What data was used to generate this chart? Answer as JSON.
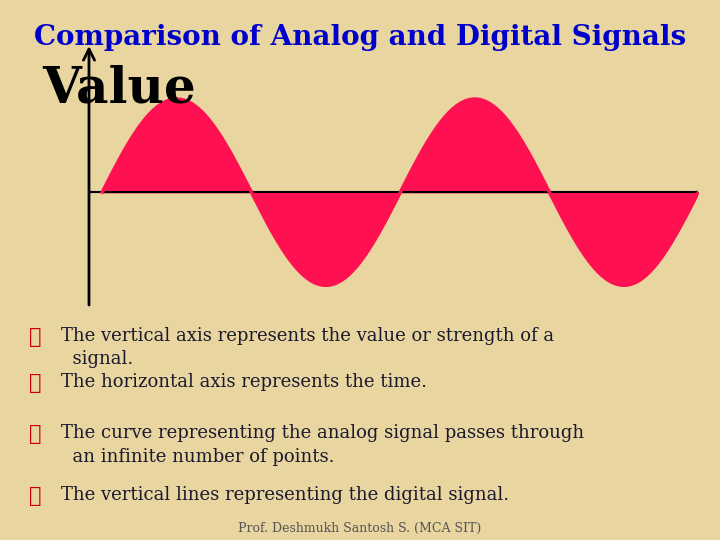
{
  "title": "Comparison of Analog and Digital Signals",
  "title_color": "#0000CC",
  "title_fontsize": 20,
  "bg_color": "#E8D5A0",
  "ylabel_text": "Value",
  "ylabel_fontsize": 36,
  "ylabel_color": "#000000",
  "sine_color": "#FF1050",
  "axis_color": "#000000",
  "bullet_color": "#CC0000",
  "text_color": "#1a1a2e",
  "bullets": [
    "The vertical axis represents the value or strength of a\n  signal.",
    "The horizontal axis represents the time.",
    "The curve representing the analog signal passes through\n  an infinite number of points.",
    "The vertical lines representing the digital signal."
  ],
  "footer": "Prof. Deshmukh Santosh S. (MCA SIT)",
  "footer_color": "#555555",
  "footer_fontsize": 9
}
